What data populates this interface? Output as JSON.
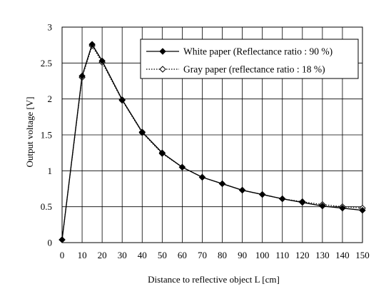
{
  "chart_data": {
    "type": "line",
    "title": "",
    "xlabel": "Distance to reflective object L [cm]",
    "ylabel": "Output voltage [V]",
    "xlim": [
      0,
      150
    ],
    "ylim": [
      0,
      3
    ],
    "x_ticks": [
      0,
      10,
      20,
      30,
      40,
      50,
      60,
      70,
      80,
      90,
      100,
      110,
      120,
      130,
      140,
      150
    ],
    "x_tick_labels": [
      "0",
      "10",
      "20",
      "30",
      "40",
      "50",
      "60",
      "70",
      "80",
      "90",
      "100",
      "110",
      "120",
      "130",
      "140",
      "150"
    ],
    "y_ticks": [
      0,
      0.5,
      1,
      1.5,
      2,
      2.5,
      3
    ],
    "y_tick_labels": [
      "0",
      "0.5",
      "1",
      "1.5",
      "2",
      "2.5",
      "3"
    ],
    "grid": true,
    "legend_position": "top-right",
    "series": [
      {
        "name": "White paper (Reflectance ratio : 90 %)",
        "line_style": "solid",
        "marker": "filled-diamond",
        "color": "#000000",
        "x": [
          0,
          10,
          15,
          20,
          30,
          40,
          50,
          60,
          70,
          80,
          90,
          100,
          110,
          120,
          130,
          140,
          150
        ],
        "y": [
          0.04,
          2.32,
          2.76,
          2.53,
          1.99,
          1.54,
          1.25,
          1.05,
          0.91,
          0.82,
          0.73,
          0.67,
          0.61,
          0.56,
          0.51,
          0.48,
          0.45
        ]
      },
      {
        "name": "Gray paper (reflectance ratio : 18 %)",
        "line_style": "dotted",
        "marker": "open-diamond",
        "color": "#000000",
        "x": [
          0,
          10,
          15,
          20,
          30,
          40,
          50,
          60,
          70,
          80,
          90,
          100,
          110,
          120,
          130,
          140,
          150
        ],
        "y": [
          0.04,
          2.3,
          2.74,
          2.51,
          1.98,
          1.53,
          1.24,
          1.05,
          0.91,
          0.82,
          0.73,
          0.67,
          0.61,
          0.57,
          0.53,
          0.5,
          0.48
        ]
      }
    ]
  }
}
